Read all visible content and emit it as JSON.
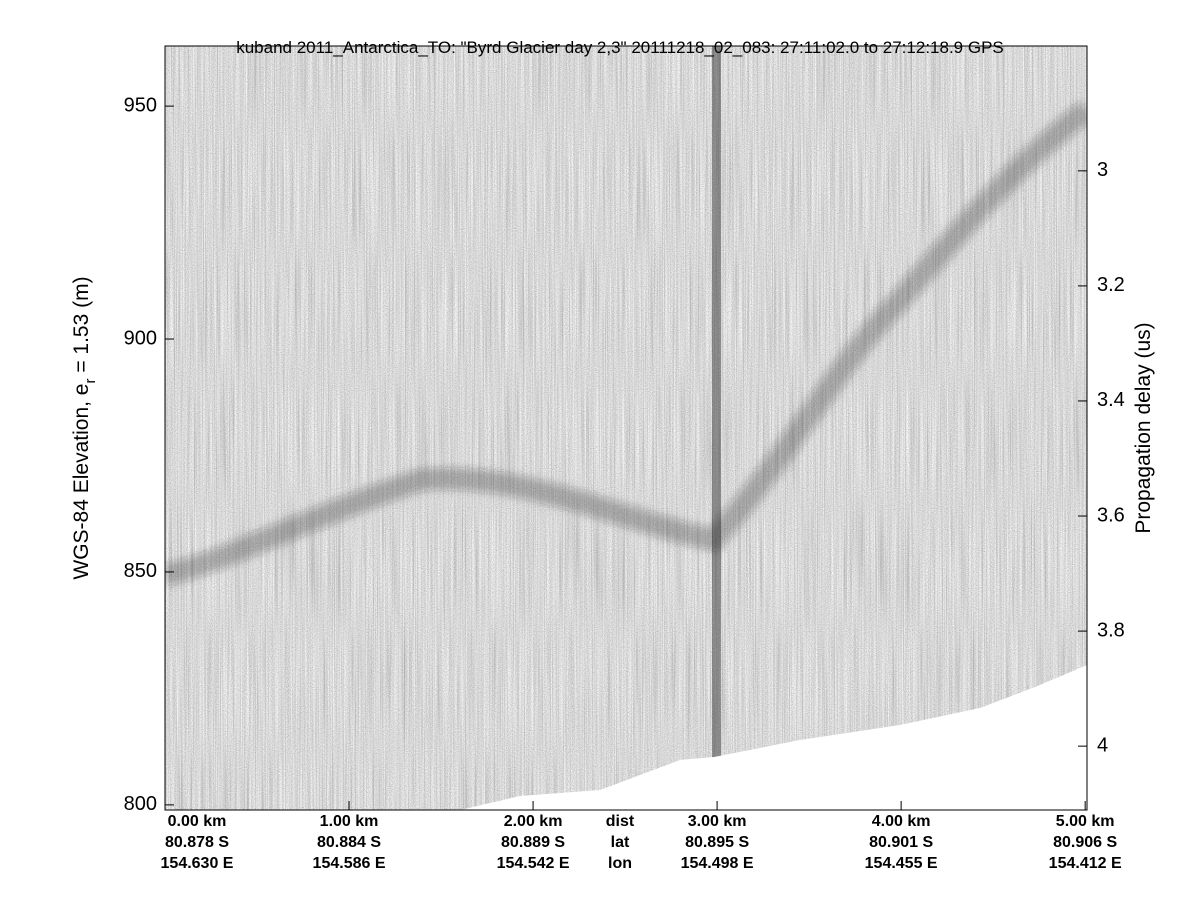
{
  "chart_data": {
    "type": "echogram",
    "title": "kuband 2011_Antarctica_TO: \"Byrd Glacier day 2,3\"  20111218_02_083: 27:11:02.0 to 27:12:18.9 GPS",
    "ylabel": {
      "main": "WGS-84 Elevation, e",
      "subscript": "r",
      "tail": " = 1.53 (m)"
    },
    "y2label": "Propagation delay (us)",
    "ylim": [
      798.9,
      962.9
    ],
    "yticks": [
      800,
      850,
      900,
      950
    ],
    "y2lim": [
      4.111,
      2.783
    ],
    "y2ticks": [
      3,
      3.2,
      3.4,
      3.6,
      3.8,
      4
    ],
    "xlim": [
      0,
      5.01
    ],
    "xticks": [
      {
        "value": 0,
        "label": "0.00 km"
      },
      {
        "value": 1,
        "label": "1.00 km"
      },
      {
        "value": 2,
        "label": "2.00 km"
      },
      {
        "value": 3,
        "label": "3.00 km"
      },
      {
        "value": 4,
        "label": "4.00 km"
      },
      {
        "value": 5,
        "label": "5.00 km"
      }
    ],
    "x_lat_labels": [
      "80.878 S",
      "80.884 S",
      "80.889 S",
      "80.895 S",
      "80.901 S",
      "80.906 S"
    ],
    "x_lon_labels": [
      "154.630 E",
      "154.586 E",
      "154.542 E",
      "154.498 E",
      "154.455 E",
      "154.412 E"
    ],
    "row_labels": [
      "dist",
      "lat",
      "lon"
    ]
  }
}
